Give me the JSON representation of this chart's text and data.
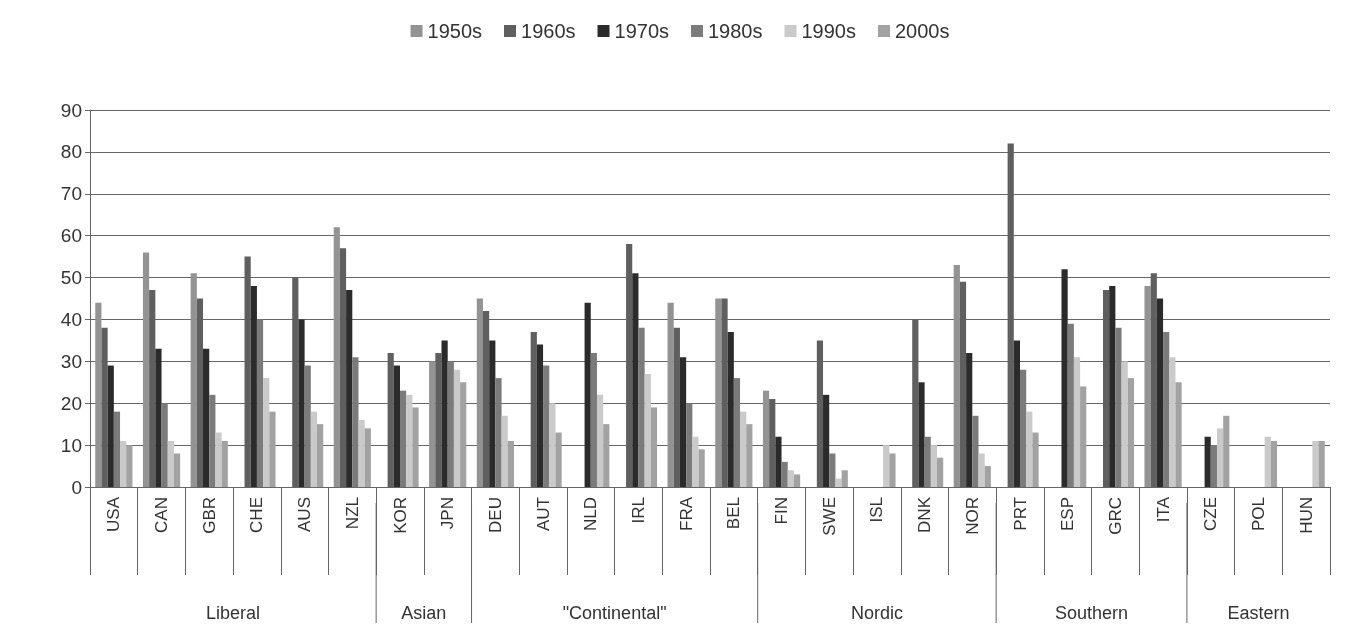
{
  "chart_data": {
    "type": "bar",
    "categories": [
      "USA",
      "CAN",
      "GBR",
      "CHE",
      "AUS",
      "NZL",
      "KOR",
      "JPN",
      "DEU",
      "AUT",
      "NLD",
      "IRL",
      "FRA",
      "BEL",
      "FIN",
      "SWE",
      "ISL",
      "DNK",
      "NOR",
      "PRT",
      "ESP",
      "GRC",
      "ITA",
      "CZE",
      "POL",
      "HUN"
    ],
    "series": [
      {
        "name": "1950s",
        "color": "#939393",
        "values": [
          44,
          56,
          51,
          null,
          null,
          62,
          null,
          30,
          45,
          null,
          null,
          null,
          44,
          45,
          23,
          null,
          null,
          null,
          53,
          null,
          null,
          null,
          48,
          null,
          null,
          null
        ]
      },
      {
        "name": "1960s",
        "color": "#5f5f5f",
        "values": [
          38,
          47,
          45,
          55,
          50,
          57,
          32,
          32,
          42,
          37,
          null,
          58,
          38,
          45,
          21,
          35,
          null,
          40,
          49,
          82,
          null,
          47,
          51,
          null,
          null,
          null
        ]
      },
      {
        "name": "1970s",
        "color": "#2b2b2b",
        "values": [
          29,
          33,
          33,
          48,
          40,
          47,
          29,
          35,
          35,
          34,
          44,
          51,
          31,
          37,
          12,
          22,
          null,
          25,
          32,
          35,
          52,
          48,
          45,
          12,
          null,
          null
        ]
      },
      {
        "name": "1980s",
        "color": "#7b7b7b",
        "values": [
          18,
          20,
          22,
          40,
          29,
          31,
          23,
          30,
          26,
          29,
          32,
          38,
          20,
          26,
          6,
          8,
          null,
          12,
          17,
          28,
          39,
          38,
          37,
          10,
          null,
          null
        ]
      },
      {
        "name": "1990s",
        "color": "#cacaca",
        "values": [
          11,
          11,
          13,
          26,
          18,
          16,
          22,
          28,
          17,
          20,
          22,
          27,
          12,
          18,
          4,
          2,
          10,
          10,
          8,
          18,
          31,
          30,
          31,
          14,
          12,
          11
        ]
      },
      {
        "name": "2000s",
        "color": "#a2a2a2",
        "values": [
          10,
          8,
          11,
          18,
          15,
          14,
          19,
          25,
          11,
          13,
          15,
          19,
          9,
          15,
          3,
          4,
          8,
          7,
          5,
          13,
          24,
          26,
          25,
          17,
          11,
          11
        ]
      }
    ],
    "annotations": [
      "Liberal",
      "Asian",
      "\"Continental\"",
      "Nordic",
      "Southern",
      "Eastern"
    ],
    "ylim": [
      0,
      90
    ],
    "yticks": [
      0,
      10,
      20,
      30,
      40,
      50,
      60,
      70,
      80,
      90
    ],
    "grid": "y",
    "legend": "top"
  }
}
